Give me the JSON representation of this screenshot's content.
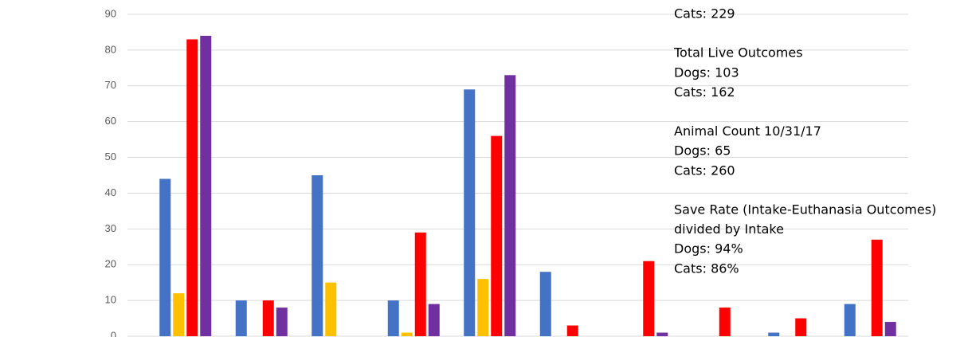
{
  "chart_data": {
    "type": "bar",
    "categories": [
      null,
      null,
      null,
      null,
      null,
      null,
      null,
      null,
      null,
      null
    ],
    "series": [
      {
        "color": "#4472c4",
        "values": [
          44,
          10,
          45,
          10,
          69,
          18,
          0,
          0,
          1,
          9
        ]
      },
      {
        "color": "#ffc000",
        "values": [
          12,
          0,
          15,
          1,
          16,
          0,
          0,
          0,
          0,
          0
        ]
      },
      {
        "color": "#ff0000",
        "values": [
          83,
          10,
          0,
          29,
          56,
          3,
          21,
          8,
          5,
          27
        ]
      },
      {
        "color": "#7030a0",
        "values": [
          84,
          8,
          0,
          9,
          73,
          0,
          1,
          0,
          0,
          4
        ]
      }
    ],
    "ylim": [
      0,
      90
    ],
    "yticks": [
      0,
      10,
      20,
      30,
      40,
      50,
      60,
      70,
      80,
      90
    ],
    "grid": true,
    "annotations": [
      [
        "Cats: 229"
      ],
      [
        "Total Live Outcomes",
        "Dogs: 103",
        "Cats: 162"
      ],
      [
        "Animal Count 10/31/17",
        "Dogs: 65",
        "Cats: 260"
      ],
      [
        "Save Rate (Intake-Euthanasia Outcomes)",
        "divided by Intake",
        "Dogs: 94%",
        "Cats: 86%"
      ]
    ]
  }
}
